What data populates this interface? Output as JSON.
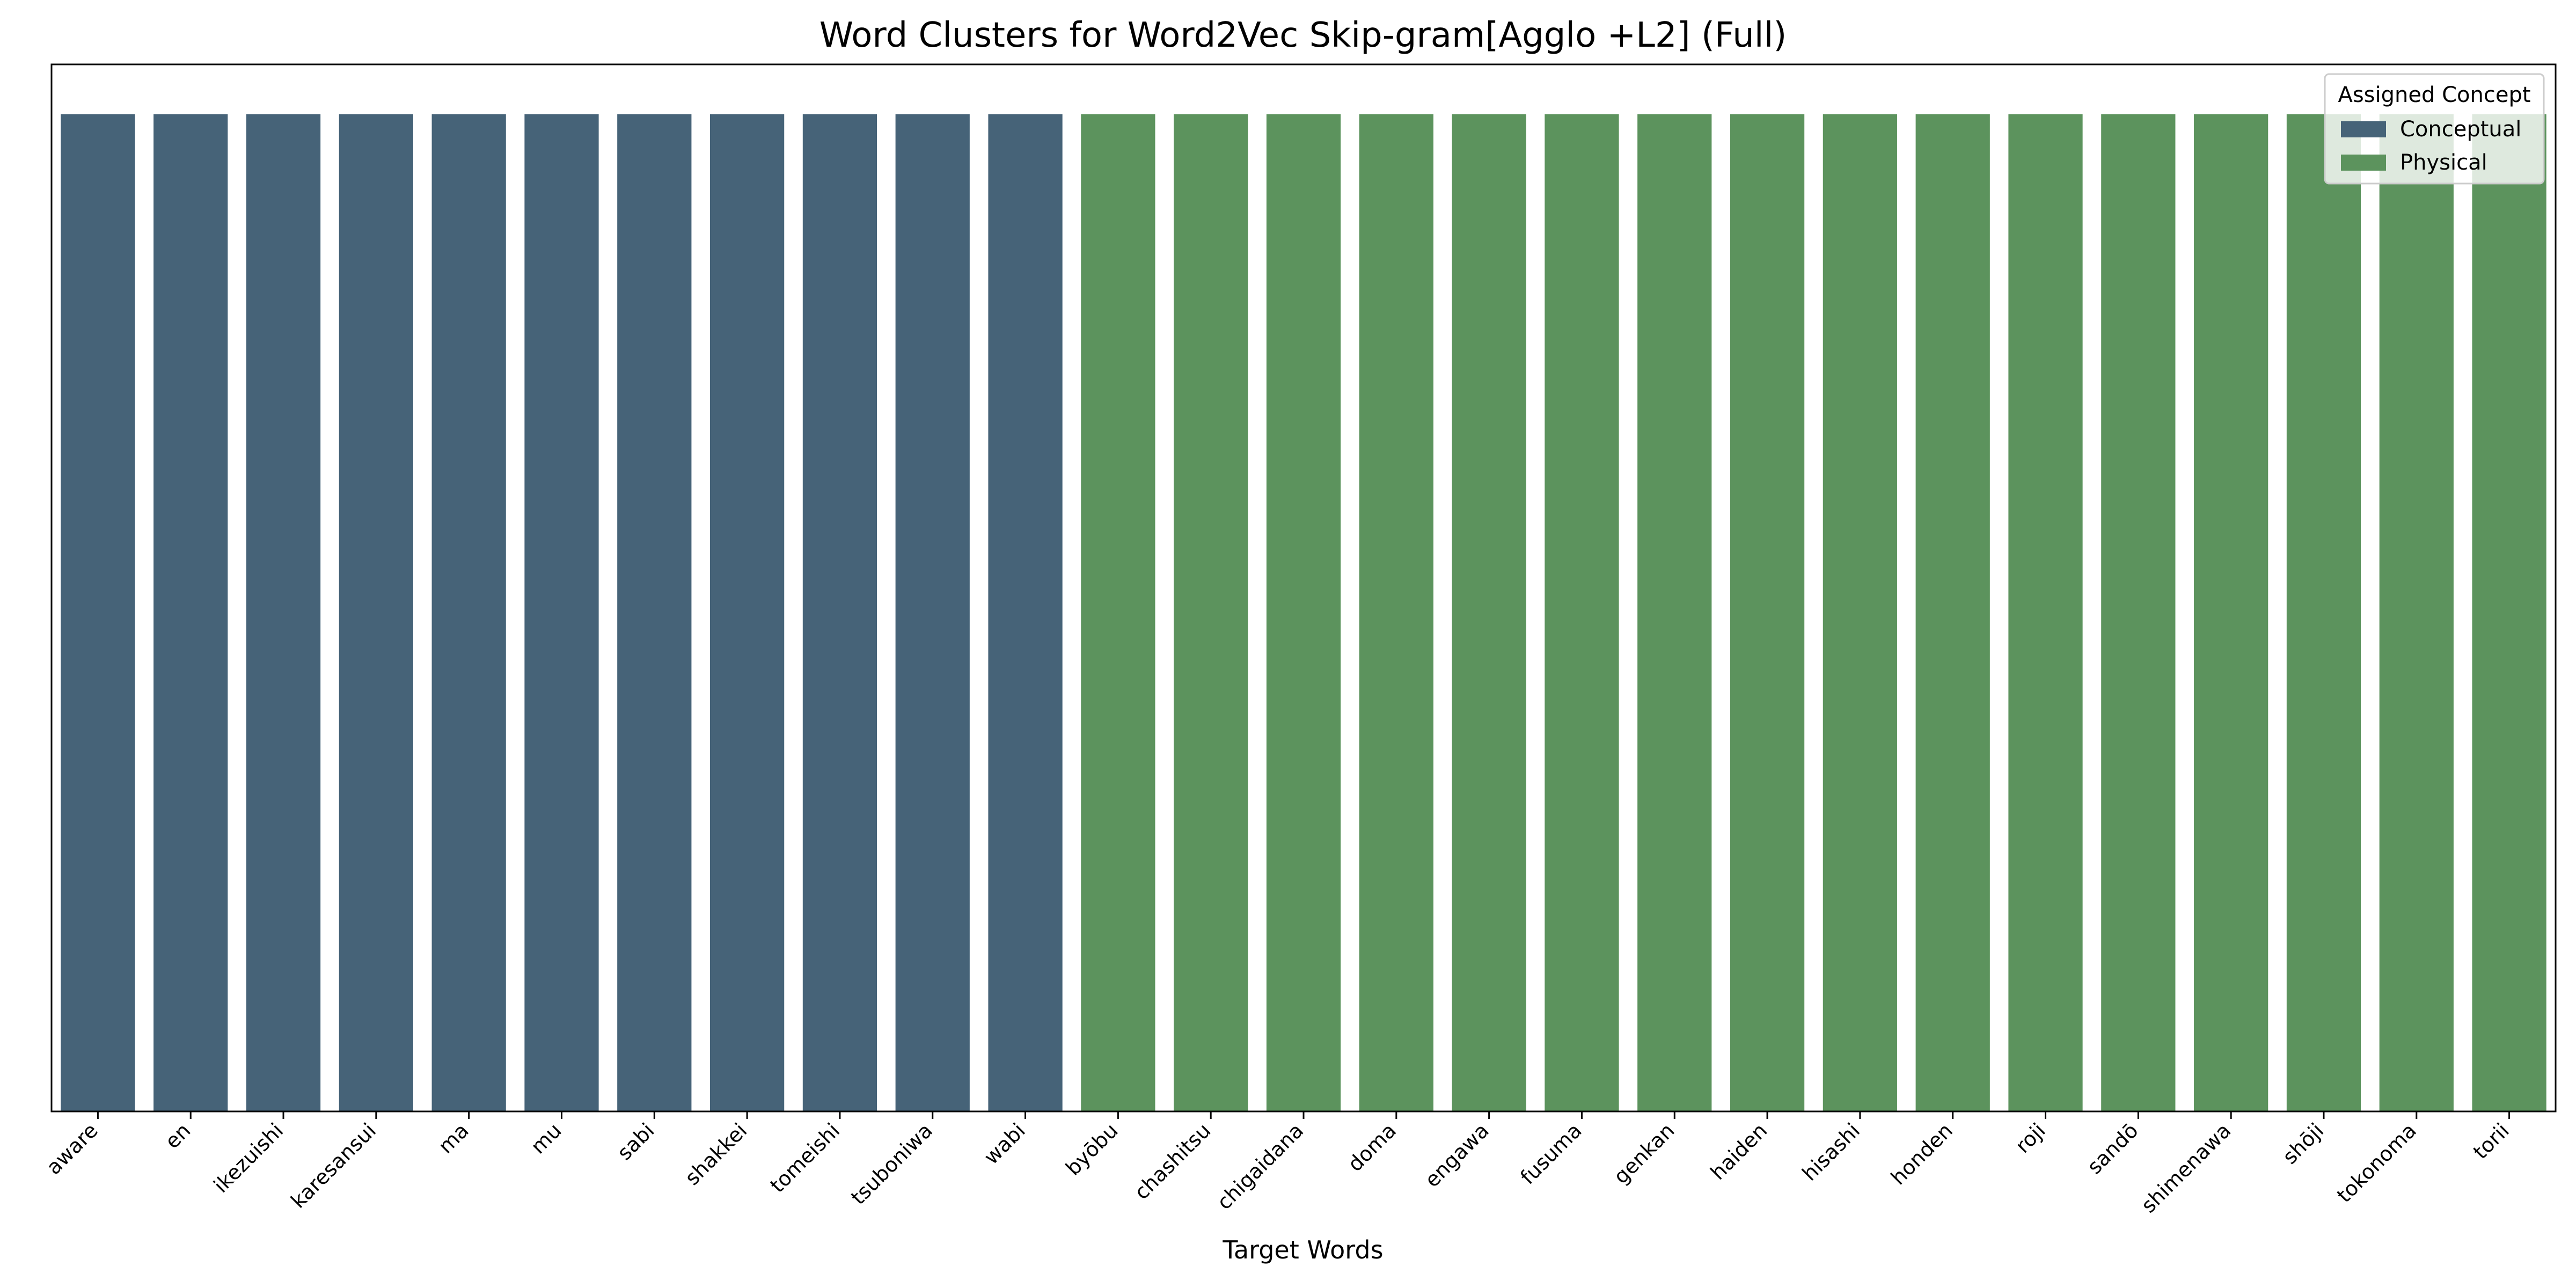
{
  "chart_data": {
    "type": "bar",
    "title": "Word Clusters for Word2Vec Skip-gram[Agglo +L2] (Full)",
    "xlabel": "Target Words",
    "ylabel": "",
    "categories": [
      "aware",
      "en",
      "ikezuishi",
      "karesansui",
      "ma",
      "mu",
      "sabi",
      "shakkei",
      "tomeishi",
      "tsuboniwa",
      "wabi",
      "byōbu",
      "chashitsu",
      "chigaidana",
      "doma",
      "engawa",
      "fusuma",
      "genkan",
      "haiden",
      "hisashi",
      "honden",
      "roji",
      "sandō",
      "shimenawa",
      "shōji",
      "tokonoma",
      "torii"
    ],
    "values": [
      1,
      1,
      1,
      1,
      1,
      1,
      1,
      1,
      1,
      1,
      1,
      1,
      1,
      1,
      1,
      1,
      1,
      1,
      1,
      1,
      1,
      1,
      1,
      1,
      1,
      1,
      1
    ],
    "concepts": [
      "Conceptual",
      "Conceptual",
      "Conceptual",
      "Conceptual",
      "Conceptual",
      "Conceptual",
      "Conceptual",
      "Conceptual",
      "Conceptual",
      "Conceptual",
      "Conceptual",
      "Physical",
      "Physical",
      "Physical",
      "Physical",
      "Physical",
      "Physical",
      "Physical",
      "Physical",
      "Physical",
      "Physical",
      "Physical",
      "Physical",
      "Physical",
      "Physical",
      "Physical",
      "Physical"
    ],
    "ylim": [
      0,
      1.05
    ],
    "legend": {
      "title": "Assigned Concept",
      "position": "top-right",
      "entries": [
        {
          "label": "Conceptual",
          "color": "#466378"
        },
        {
          "label": "Physical",
          "color": "#5c935d"
        }
      ]
    },
    "grid": false
  }
}
